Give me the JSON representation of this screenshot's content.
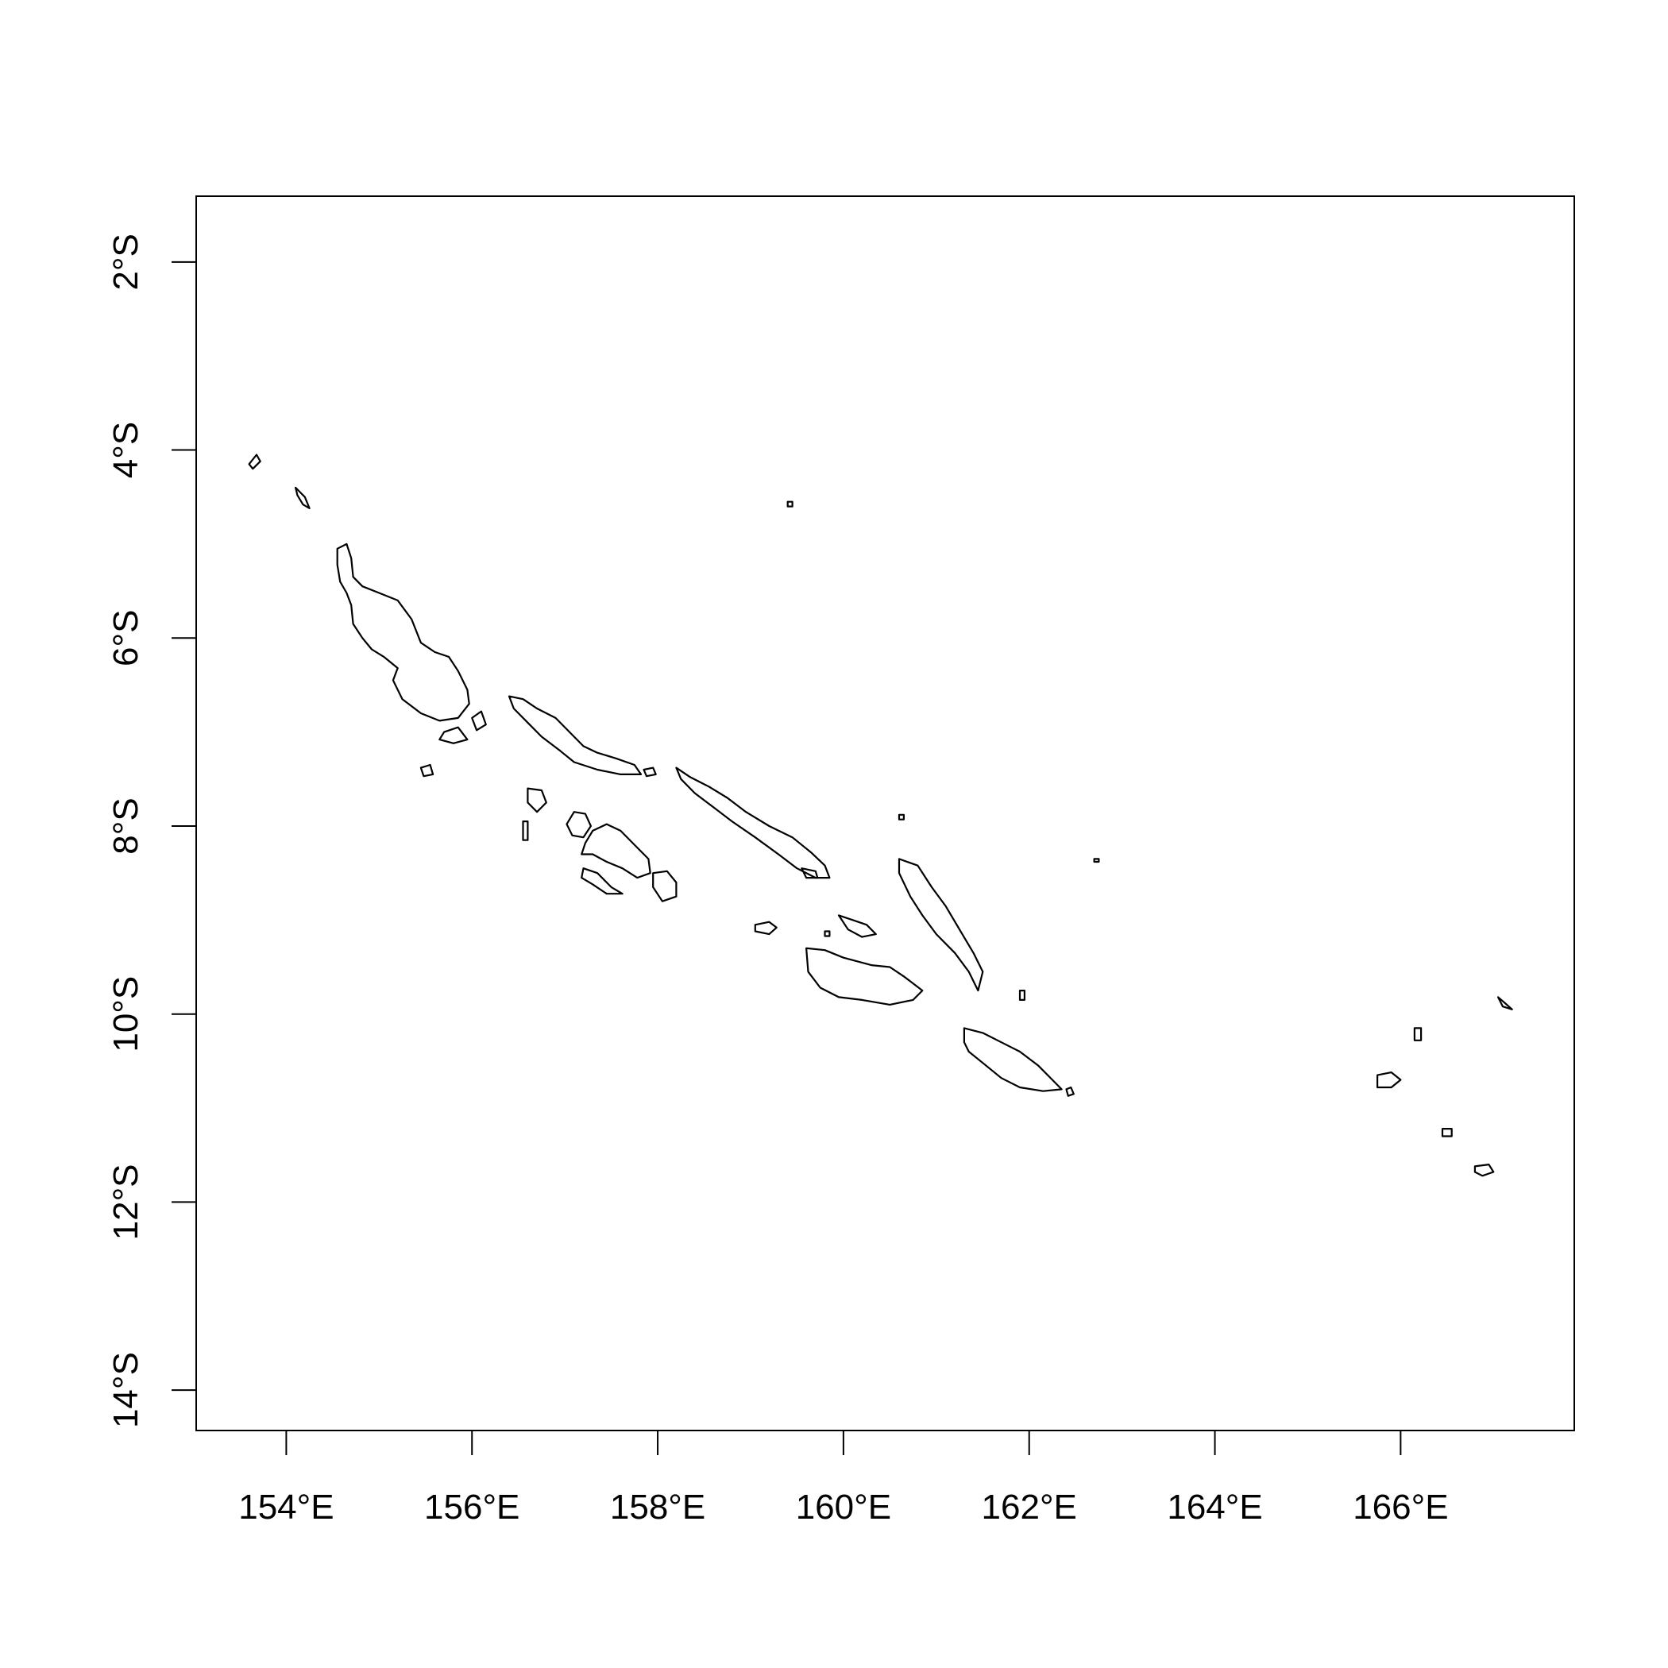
{
  "map": {
    "x_ticks": [
      {
        "value": 154,
        "label": "154°E"
      },
      {
        "value": 156,
        "label": "156°E"
      },
      {
        "value": 158,
        "label": "158°E"
      },
      {
        "value": 160,
        "label": "160°E"
      },
      {
        "value": 162,
        "label": "162°E"
      },
      {
        "value": 164,
        "label": "164°E"
      },
      {
        "value": 166,
        "label": "166°E"
      }
    ],
    "y_ticks": [
      {
        "value": -2,
        "label": "2°S"
      },
      {
        "value": -4,
        "label": "4°S"
      },
      {
        "value": -6,
        "label": "6°S"
      },
      {
        "value": -8,
        "label": "8°S"
      },
      {
        "value": -10,
        "label": "10°S"
      },
      {
        "value": -12,
        "label": "12°S"
      },
      {
        "value": -14,
        "label": "14°S"
      }
    ],
    "xlim": [
      153.03,
      167.87
    ],
    "ylim": [
      -14.43,
      -1.3
    ],
    "line_color": "#000000",
    "background": "#ffffff"
  },
  "chart_data": {
    "type": "map",
    "xlim": [
      153.03,
      167.87
    ],
    "ylim": [
      -14.43,
      -1.3
    ],
    "grid": false,
    "islands": [
      {
        "id": "choiseul-north-speck",
        "points": [
          [
            153.6,
            -4.15
          ],
          [
            153.68,
            -4.05
          ],
          [
            153.72,
            -4.12
          ],
          [
            153.64,
            -4.2
          ]
        ]
      },
      {
        "id": "nissan-speck",
        "points": [
          [
            154.1,
            -4.4
          ],
          [
            154.2,
            -4.5
          ],
          [
            154.25,
            -4.62
          ],
          [
            154.18,
            -4.58
          ],
          [
            154.12,
            -4.48
          ]
        ]
      },
      {
        "id": "bougainville",
        "points": [
          [
            154.55,
            -5.05
          ],
          [
            154.65,
            -5.0
          ],
          [
            154.7,
            -5.15
          ],
          [
            154.72,
            -5.35
          ],
          [
            154.82,
            -5.45
          ],
          [
            155.0,
            -5.52
          ],
          [
            155.2,
            -5.6
          ],
          [
            155.35,
            -5.8
          ],
          [
            155.45,
            -6.05
          ],
          [
            155.6,
            -6.15
          ],
          [
            155.75,
            -6.2
          ],
          [
            155.85,
            -6.35
          ],
          [
            155.95,
            -6.55
          ],
          [
            155.97,
            -6.7
          ],
          [
            155.85,
            -6.85
          ],
          [
            155.65,
            -6.88
          ],
          [
            155.45,
            -6.8
          ],
          [
            155.25,
            -6.65
          ],
          [
            155.15,
            -6.45
          ],
          [
            155.2,
            -6.32
          ],
          [
            155.05,
            -6.2
          ],
          [
            154.92,
            -6.12
          ],
          [
            154.82,
            -6.0
          ],
          [
            154.72,
            -5.85
          ],
          [
            154.7,
            -5.65
          ],
          [
            154.65,
            -5.52
          ],
          [
            154.58,
            -5.4
          ],
          [
            154.55,
            -5.22
          ]
        ]
      },
      {
        "id": "shortland",
        "points": [
          [
            155.7,
            -7.0
          ],
          [
            155.85,
            -6.95
          ],
          [
            155.95,
            -7.08
          ],
          [
            155.8,
            -7.12
          ],
          [
            155.65,
            -7.08
          ]
        ]
      },
      {
        "id": "fauro",
        "points": [
          [
            156.0,
            -6.85
          ],
          [
            156.1,
            -6.78
          ],
          [
            156.15,
            -6.92
          ],
          [
            156.05,
            -6.98
          ]
        ]
      },
      {
        "id": "treasury",
        "points": [
          [
            155.45,
            -7.38
          ],
          [
            155.55,
            -7.35
          ],
          [
            155.58,
            -7.45
          ],
          [
            155.48,
            -7.47
          ]
        ]
      },
      {
        "id": "choiseul",
        "points": [
          [
            156.4,
            -6.62
          ],
          [
            156.55,
            -6.65
          ],
          [
            156.7,
            -6.75
          ],
          [
            156.9,
            -6.85
          ],
          [
            157.05,
            -7.0
          ],
          [
            157.2,
            -7.15
          ],
          [
            157.35,
            -7.22
          ],
          [
            157.55,
            -7.28
          ],
          [
            157.75,
            -7.35
          ],
          [
            157.82,
            -7.45
          ],
          [
            157.6,
            -7.45
          ],
          [
            157.35,
            -7.4
          ],
          [
            157.1,
            -7.32
          ],
          [
            156.95,
            -7.2
          ],
          [
            156.75,
            -7.05
          ],
          [
            156.6,
            -6.9
          ],
          [
            156.45,
            -6.75
          ]
        ]
      },
      {
        "id": "choiseul-tip-islet",
        "points": [
          [
            157.85,
            -7.4
          ],
          [
            157.95,
            -7.38
          ],
          [
            157.98,
            -7.45
          ],
          [
            157.88,
            -7.47
          ]
        ]
      },
      {
        "id": "santa-isabel",
        "points": [
          [
            158.2,
            -7.38
          ],
          [
            158.35,
            -7.48
          ],
          [
            158.55,
            -7.58
          ],
          [
            158.75,
            -7.7
          ],
          [
            158.95,
            -7.85
          ],
          [
            159.2,
            -8.0
          ],
          [
            159.45,
            -8.12
          ],
          [
            159.65,
            -8.28
          ],
          [
            159.8,
            -8.42
          ],
          [
            159.85,
            -8.55
          ],
          [
            159.7,
            -8.55
          ],
          [
            159.5,
            -8.45
          ],
          [
            159.3,
            -8.3
          ],
          [
            159.05,
            -8.12
          ],
          [
            158.8,
            -7.95
          ],
          [
            158.6,
            -7.8
          ],
          [
            158.4,
            -7.65
          ],
          [
            158.25,
            -7.5
          ]
        ]
      },
      {
        "id": "santa-isabel-east-islets",
        "points": [
          [
            159.55,
            -8.45
          ],
          [
            159.7,
            -8.48
          ],
          [
            159.72,
            -8.55
          ],
          [
            159.6,
            -8.55
          ]
        ]
      },
      {
        "id": "vella-lavella",
        "points": [
          [
            156.6,
            -7.6
          ],
          [
            156.75,
            -7.62
          ],
          [
            156.8,
            -7.75
          ],
          [
            156.7,
            -7.85
          ],
          [
            156.6,
            -7.75
          ]
        ]
      },
      {
        "id": "vella-west-islets",
        "points": [
          [
            156.55,
            -7.95
          ],
          [
            156.6,
            -7.95
          ],
          [
            156.6,
            -8.15
          ],
          [
            156.55,
            -8.15
          ]
        ]
      },
      {
        "id": "kolombangara",
        "points": [
          [
            157.1,
            -7.85
          ],
          [
            157.22,
            -7.87
          ],
          [
            157.28,
            -8.0
          ],
          [
            157.2,
            -8.12
          ],
          [
            157.08,
            -8.1
          ],
          [
            157.02,
            -7.98
          ]
        ]
      },
      {
        "id": "new-georgia",
        "points": [
          [
            157.3,
            -8.05
          ],
          [
            157.45,
            -7.98
          ],
          [
            157.6,
            -8.05
          ],
          [
            157.75,
            -8.2
          ],
          [
            157.9,
            -8.35
          ],
          [
            157.92,
            -8.5
          ],
          [
            157.78,
            -8.55
          ],
          [
            157.62,
            -8.45
          ],
          [
            157.45,
            -8.38
          ],
          [
            157.3,
            -8.3
          ],
          [
            157.18,
            -8.3
          ],
          [
            157.22,
            -8.18
          ]
        ]
      },
      {
        "id": "rendova",
        "points": [
          [
            157.2,
            -8.45
          ],
          [
            157.35,
            -8.5
          ],
          [
            157.5,
            -8.65
          ],
          [
            157.62,
            -8.72
          ],
          [
            157.45,
            -8.72
          ],
          [
            157.3,
            -8.62
          ],
          [
            157.18,
            -8.55
          ]
        ]
      },
      {
        "id": "vangunu",
        "points": [
          [
            157.95,
            -8.5
          ],
          [
            158.1,
            -8.48
          ],
          [
            158.2,
            -8.6
          ],
          [
            158.2,
            -8.75
          ],
          [
            158.05,
            -8.8
          ],
          [
            157.95,
            -8.65
          ]
        ]
      },
      {
        "id": "russell",
        "points": [
          [
            159.05,
            -9.05
          ],
          [
            159.2,
            -9.02
          ],
          [
            159.28,
            -9.08
          ],
          [
            159.2,
            -9.15
          ],
          [
            159.05,
            -9.12
          ]
        ]
      },
      {
        "id": "savo",
        "points": [
          [
            159.8,
            -9.12
          ],
          [
            159.85,
            -9.12
          ],
          [
            159.85,
            -9.17
          ],
          [
            159.8,
            -9.17
          ]
        ]
      },
      {
        "id": "florida",
        "points": [
          [
            159.95,
            -8.95
          ],
          [
            160.1,
            -9.0
          ],
          [
            160.25,
            -9.05
          ],
          [
            160.35,
            -9.15
          ],
          [
            160.2,
            -9.18
          ],
          [
            160.05,
            -9.1
          ]
        ]
      },
      {
        "id": "guadalcanal",
        "points": [
          [
            159.6,
            -9.3
          ],
          [
            159.8,
            -9.32
          ],
          [
            160.0,
            -9.4
          ],
          [
            160.3,
            -9.48
          ],
          [
            160.5,
            -9.5
          ],
          [
            160.65,
            -9.6
          ],
          [
            160.85,
            -9.75
          ],
          [
            160.75,
            -9.85
          ],
          [
            160.5,
            -9.9
          ],
          [
            160.2,
            -9.85
          ],
          [
            159.95,
            -9.82
          ],
          [
            159.75,
            -9.72
          ],
          [
            159.62,
            -9.55
          ]
        ]
      },
      {
        "id": "malaita",
        "points": [
          [
            160.6,
            -8.35
          ],
          [
            160.8,
            -8.42
          ],
          [
            160.95,
            -8.65
          ],
          [
            161.1,
            -8.85
          ],
          [
            161.25,
            -9.1
          ],
          [
            161.4,
            -9.35
          ],
          [
            161.5,
            -9.55
          ],
          [
            161.45,
            -9.75
          ],
          [
            161.35,
            -9.55
          ],
          [
            161.2,
            -9.35
          ],
          [
            161.0,
            -9.15
          ],
          [
            160.85,
            -8.95
          ],
          [
            160.72,
            -8.75
          ],
          [
            160.6,
            -8.5
          ]
        ]
      },
      {
        "id": "small-malaita",
        "points": [
          [
            161.9,
            -9.75
          ],
          [
            161.95,
            -9.75
          ],
          [
            161.95,
            -9.85
          ],
          [
            161.9,
            -9.85
          ]
        ]
      },
      {
        "id": "ontong-java-speck",
        "points": [
          [
            159.4,
            -4.55
          ],
          [
            159.45,
            -4.55
          ],
          [
            159.45,
            -4.6
          ],
          [
            159.4,
            -4.6
          ]
        ]
      },
      {
        "id": "sikaiana-speck",
        "points": [
          [
            162.7,
            -8.35
          ],
          [
            162.75,
            -8.35
          ],
          [
            162.75,
            -8.38
          ],
          [
            162.7,
            -8.38
          ]
        ]
      },
      {
        "id": "ulawa-speck",
        "points": [
          [
            160.6,
            -7.88
          ],
          [
            160.65,
            -7.88
          ],
          [
            160.65,
            -7.93
          ],
          [
            160.6,
            -7.93
          ]
        ]
      },
      {
        "id": "makira",
        "points": [
          [
            161.3,
            -10.15
          ],
          [
            161.5,
            -10.2
          ],
          [
            161.7,
            -10.3
          ],
          [
            161.9,
            -10.4
          ],
          [
            162.1,
            -10.55
          ],
          [
            162.25,
            -10.7
          ],
          [
            162.35,
            -10.8
          ],
          [
            162.15,
            -10.82
          ],
          [
            161.9,
            -10.78
          ],
          [
            161.7,
            -10.68
          ],
          [
            161.5,
            -10.52
          ],
          [
            161.35,
            -10.4
          ],
          [
            161.3,
            -10.3
          ]
        ]
      },
      {
        "id": "makira-east-islets",
        "points": [
          [
            162.4,
            -10.8
          ],
          [
            162.45,
            -10.78
          ],
          [
            162.48,
            -10.85
          ],
          [
            162.42,
            -10.87
          ]
        ]
      },
      {
        "id": "santa-cruz-main",
        "points": [
          [
            165.75,
            -10.65
          ],
          [
            165.9,
            -10.62
          ],
          [
            166.0,
            -10.7
          ],
          [
            165.9,
            -10.78
          ],
          [
            165.75,
            -10.78
          ]
        ]
      },
      {
        "id": "utupua",
        "points": [
          [
            166.45,
            -11.22
          ],
          [
            166.55,
            -11.22
          ],
          [
            166.55,
            -11.3
          ],
          [
            166.45,
            -11.3
          ]
        ]
      },
      {
        "id": "vanikoro",
        "points": [
          [
            166.8,
            -11.62
          ],
          [
            166.95,
            -11.6
          ],
          [
            167.0,
            -11.68
          ],
          [
            166.88,
            -11.72
          ],
          [
            166.8,
            -11.68
          ]
        ]
      },
      {
        "id": "duff-islands",
        "points": [
          [
            167.05,
            -9.82
          ],
          [
            167.12,
            -9.88
          ],
          [
            167.2,
            -9.95
          ],
          [
            167.1,
            -9.92
          ]
        ]
      },
      {
        "id": "reef-islands",
        "points": [
          [
            166.15,
            -10.15
          ],
          [
            166.22,
            -10.15
          ],
          [
            166.22,
            -10.28
          ],
          [
            166.15,
            -10.28
          ]
        ]
      }
    ]
  }
}
